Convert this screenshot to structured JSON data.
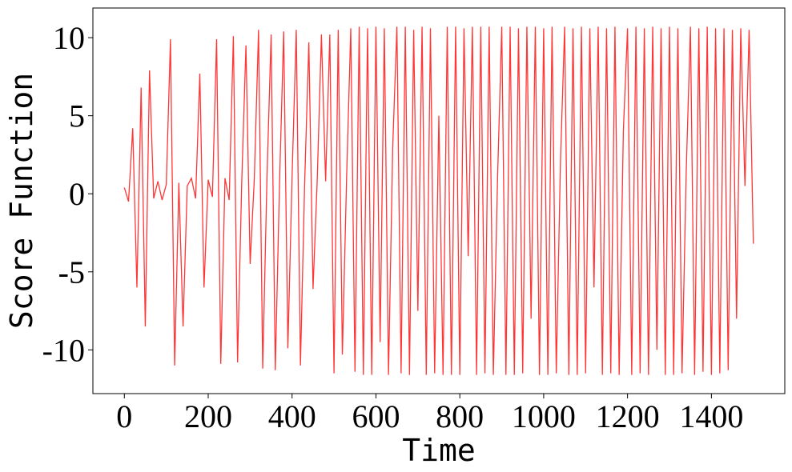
{
  "chart_data": {
    "type": "line",
    "x_label": "Time",
    "y_label": "Score Function",
    "x": [
      0,
      10,
      20,
      30,
      40,
      50,
      60,
      70,
      80,
      90,
      100,
      110,
      120,
      130,
      140,
      150,
      160,
      170,
      180,
      190,
      200,
      210,
      220,
      230,
      240,
      250,
      260,
      270,
      280,
      290,
      300,
      310,
      320,
      330,
      340,
      350,
      360,
      370,
      380,
      390,
      400,
      410,
      420,
      430,
      440,
      450,
      460,
      470,
      480,
      490,
      500,
      510,
      520,
      530,
      540,
      550,
      560,
      570,
      580,
      590,
      600,
      610,
      620,
      630,
      640,
      650,
      660,
      670,
      680,
      690,
      700,
      710,
      720,
      730,
      740,
      750,
      760,
      770,
      780,
      790,
      800,
      810,
      820,
      830,
      840,
      850,
      860,
      870,
      880,
      890,
      900,
      910,
      920,
      930,
      940,
      950,
      960,
      970,
      980,
      990,
      1000,
      1010,
      1020,
      1030,
      1040,
      1050,
      1060,
      1070,
      1080,
      1090,
      1100,
      1110,
      1120,
      1130,
      1140,
      1150,
      1160,
      1170,
      1180,
      1190,
      1200,
      1210,
      1220,
      1230,
      1240,
      1250,
      1260,
      1270,
      1280,
      1290,
      1300,
      1310,
      1320,
      1330,
      1340,
      1350,
      1360,
      1370,
      1380,
      1390,
      1400,
      1410,
      1420,
      1430,
      1440,
      1450,
      1460,
      1470,
      1480,
      1490,
      1500
    ],
    "series": [
      {
        "color": "#ff2020",
        "values": [
          0.4,
          -0.5,
          4.2,
          -6,
          6.8,
          -8.5,
          7.9,
          -0.3,
          0.8,
          -0.4,
          0.6,
          9.9,
          -11,
          0.7,
          -8.5,
          0.5,
          1.0,
          -0.3,
          7.7,
          -6,
          0.9,
          -0.2,
          9.9,
          -10.9,
          1.0,
          -0.4,
          10.1,
          -10.8,
          0.8,
          9.5,
          -4.5,
          1.0,
          10.5,
          -11.2,
          0.9,
          10.2,
          -11.3,
          0.6,
          10.4,
          -9.9,
          1.1,
          10.5,
          -11,
          0.7,
          9.7,
          -6.1,
          0.9,
          10.2,
          0.8,
          10.2,
          -11.5,
          10.5,
          -10.3,
          1.0,
          10.6,
          -11.4,
          10.7,
          -11.6,
          10.6,
          -11.6,
          10.7,
          -9.5,
          10.6,
          -11.6,
          3.0,
          10.7,
          -11.5,
          10.7,
          -11.6,
          10.5,
          -7.5,
          10.7,
          -11.6,
          10.6,
          -11.5,
          5.0,
          -11.6,
          10.7,
          -11.6,
          10.7,
          -11.6,
          10.6,
          -4.0,
          10.7,
          -11.6,
          10.7,
          -11.5,
          10.7,
          -11.6,
          1.0,
          10.7,
          -11.6,
          10.7,
          -11.6,
          10.6,
          -11.5,
          10.7,
          -8.0,
          10.7,
          -11.6,
          10.6,
          -11.6,
          10.7,
          -11.5,
          2.0,
          10.7,
          -11.6,
          10.6,
          -11.6,
          10.7,
          -11.5,
          10.6,
          -6.0,
          10.7,
          -11.6,
          10.6,
          -11.5,
          10.7,
          -11.6,
          4.0,
          10.6,
          -11.6,
          10.7,
          -11.5,
          10.6,
          -11.6,
          10.7,
          -10.0,
          10.6,
          -11.6,
          10.7,
          -11.6,
          10.6,
          -11.5,
          1.5,
          10.7,
          -11.6,
          10.6,
          -11.4,
          10.7,
          -11.6,
          10.6,
          -11.5,
          10.6,
          -11.3,
          10.5,
          -8.0,
          10.6,
          0.5,
          10.5,
          -3.2
        ]
      }
    ],
    "xlim": [
      -75,
      1575
    ],
    "ylim": [
      -12.8,
      11.9
    ],
    "xticks": [
      0,
      200,
      400,
      600,
      800,
      1000,
      1200,
      1400
    ],
    "yticks": [
      -10,
      -5,
      0,
      5,
      10
    ]
  }
}
